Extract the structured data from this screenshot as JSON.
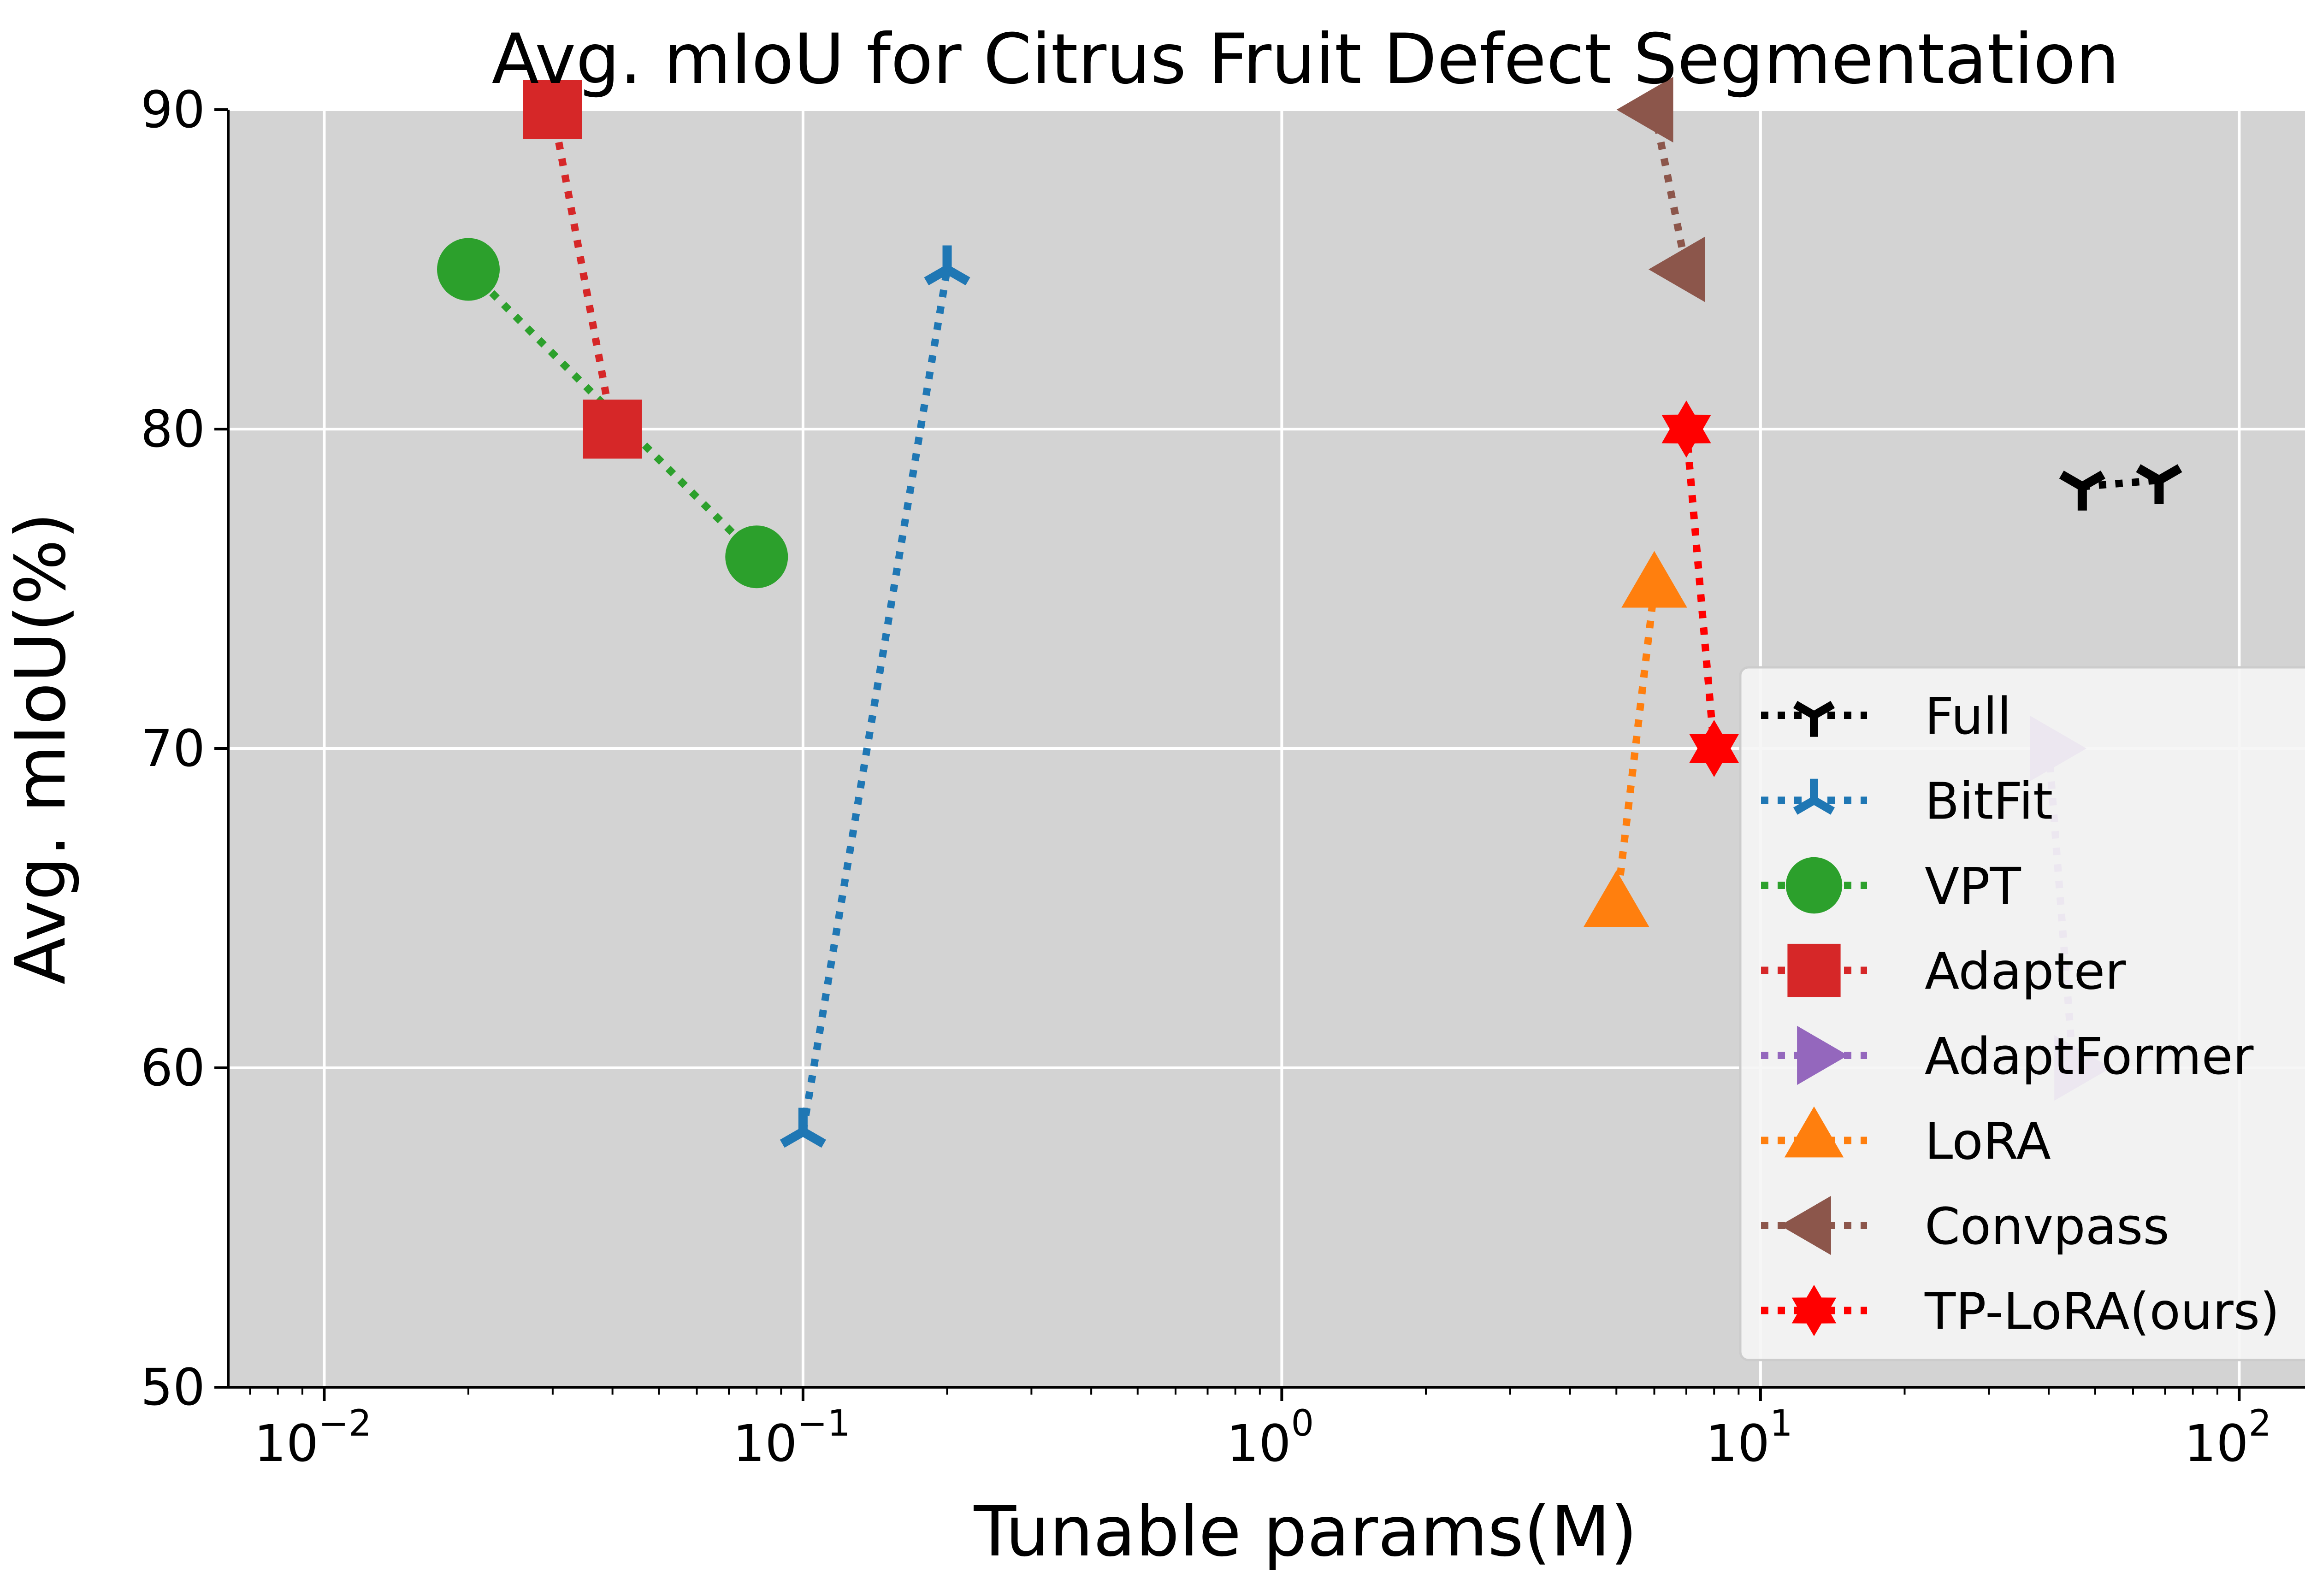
{
  "chart_data": {
    "type": "scatter",
    "title": "Avg. mIoU for Citrus Fruit Defect Segmentation",
    "xlabel": "Tunable params(M)",
    "ylabel": "Avg. mIoU(%)",
    "xscale": "log",
    "xlim": [
      0.0063,
      200
    ],
    "ylim": [
      50,
      90
    ],
    "x_ticks": [
      {
        "value": 0.01,
        "base": "10",
        "exp": "−2"
      },
      {
        "value": 0.1,
        "base": "10",
        "exp": "−1"
      },
      {
        "value": 1,
        "base": "10",
        "exp": "0"
      },
      {
        "value": 10,
        "base": "10",
        "exp": "1"
      },
      {
        "value": 100,
        "base": "10",
        "exp": "2"
      }
    ],
    "y_ticks": [
      "50",
      "60",
      "70",
      "80",
      "90"
    ],
    "grid": true,
    "background": "#d3d3d3",
    "legend_position": "lower-right",
    "series": [
      {
        "name": "Full",
        "color": "#000000",
        "marker": "tri-down",
        "points": [
          [
            47,
            78.2
          ],
          [
            68,
            78.4
          ]
        ]
      },
      {
        "name": "BitFit",
        "color": "#1f77b4",
        "marker": "tri-up",
        "points": [
          [
            0.1,
            58
          ],
          [
            0.2,
            85
          ]
        ]
      },
      {
        "name": "VPT",
        "color": "#2ca02c",
        "marker": "circle",
        "points": [
          [
            0.02,
            85
          ],
          [
            0.08,
            76
          ]
        ]
      },
      {
        "name": "Adapter",
        "color": "#d62728",
        "marker": "square",
        "points": [
          [
            0.03,
            90
          ],
          [
            0.04,
            80
          ]
        ]
      },
      {
        "name": "AdaptFormer",
        "color": "#9467bd",
        "marker": "triangle-right",
        "points": [
          [
            40,
            70
          ],
          [
            45,
            60
          ]
        ]
      },
      {
        "name": "LoRA",
        "color": "#ff7f0e",
        "marker": "triangle-up",
        "points": [
          [
            5,
            65
          ],
          [
            6,
            75
          ]
        ]
      },
      {
        "name": "Convpass",
        "color": "#8c564b",
        "marker": "triangle-left",
        "points": [
          [
            6,
            90
          ],
          [
            7,
            85
          ]
        ]
      },
      {
        "name": "TP-LoRA(ours)",
        "color": "#ff0000",
        "marker": "star",
        "points": [
          [
            7,
            80
          ],
          [
            8,
            70
          ]
        ]
      }
    ]
  }
}
